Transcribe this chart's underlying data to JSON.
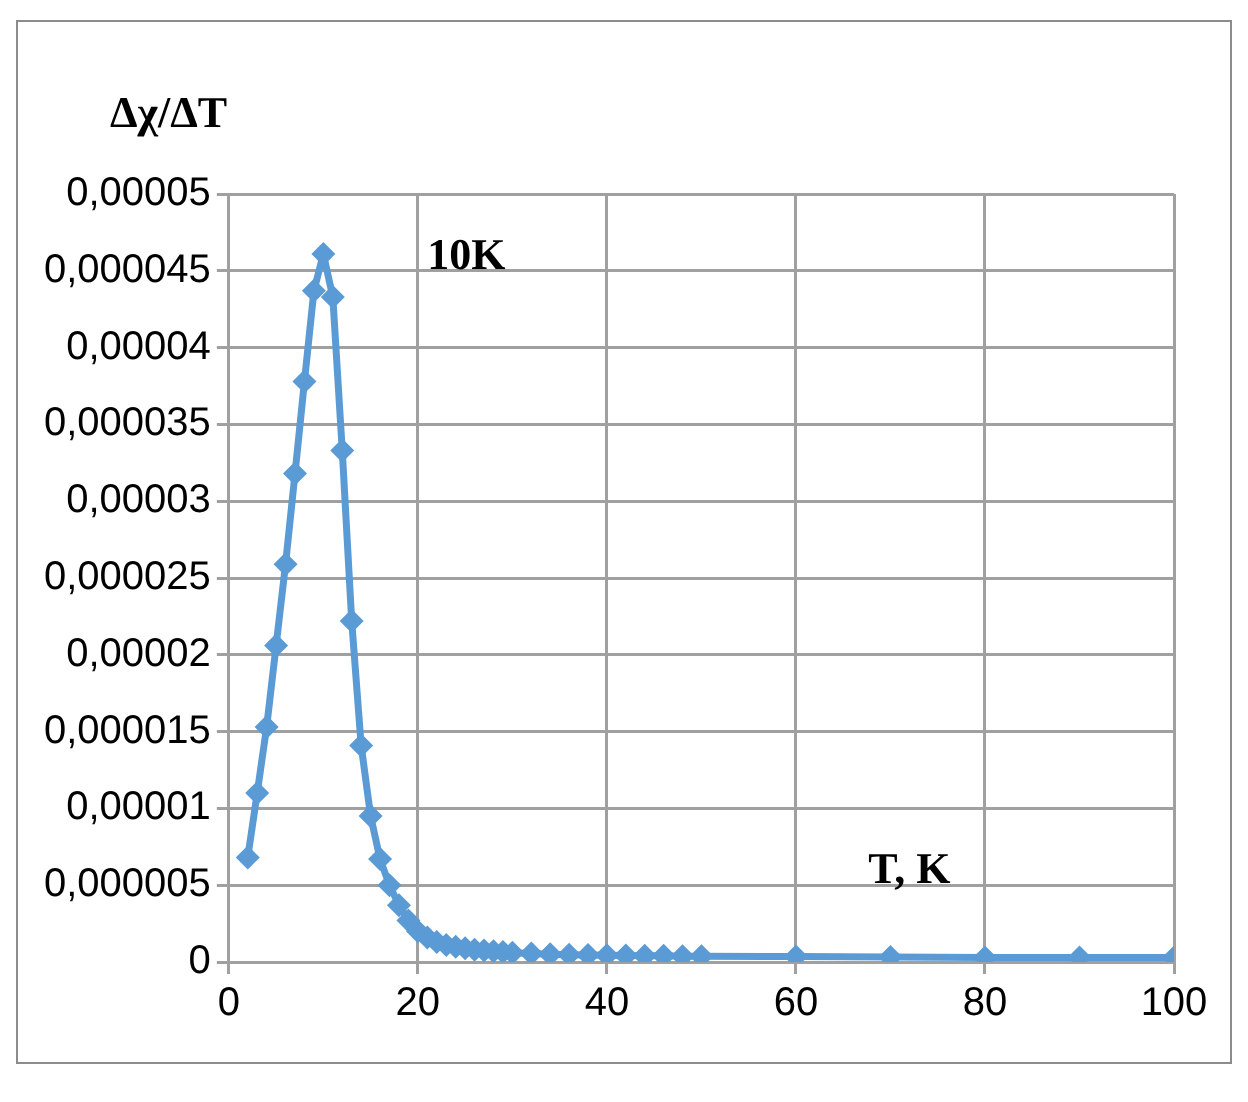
{
  "chart_data": {
    "type": "line",
    "ylabel": "Δχ/ΔT",
    "xlabel": "T, K",
    "annotations": [
      "10K"
    ],
    "x": [
      2,
      3,
      4,
      5,
      6,
      7,
      8,
      9,
      10,
      11,
      12,
      13,
      14,
      15,
      16,
      17,
      18,
      19,
      20,
      21,
      22,
      23,
      24,
      25,
      26,
      27,
      28,
      29,
      30,
      32,
      34,
      36,
      38,
      40,
      42,
      44,
      46,
      48,
      50,
      60,
      70,
      80,
      90,
      100
    ],
    "series": [
      {
        "color": "#5b9bd5",
        "values": [
          6.8e-06,
          1.1e-05,
          1.53e-05,
          2.06e-05,
          2.59e-05,
          3.18e-05,
          3.78e-05,
          4.37e-05,
          4.61e-05,
          4.33e-05,
          3.33e-05,
          2.22e-05,
          1.41e-05,
          9.5e-06,
          6.7e-06,
          5e-06,
          3.7e-06,
          2.7e-06,
          2e-06,
          1.6e-06,
          1.3e-06,
          1.1e-06,
          1e-06,
          9e-07,
          8e-07,
          7.5e-07,
          7e-07,
          6.5e-07,
          6e-07,
          5.5e-07,
          5e-07,
          4.8e-07,
          4.6e-07,
          4.4e-07,
          4.2e-07,
          4e-07,
          4e-07,
          3.8e-07,
          3.7e-07,
          3.5e-07,
          3.2e-07,
          3e-07,
          3e-07,
          3e-07
        ]
      }
    ],
    "xlim": [
      0,
      100
    ],
    "xticks": [
      0,
      20,
      40,
      60,
      80,
      100
    ],
    "ylim": [
      0,
      5e-05
    ],
    "yticks": [
      {
        "value": 0,
        "label": "0"
      },
      {
        "value": 5e-06,
        "label": "0,000005"
      },
      {
        "value": 1e-05,
        "label": "0,00001"
      },
      {
        "value": 1.5e-05,
        "label": "0,000015"
      },
      {
        "value": 2e-05,
        "label": "0,00002"
      },
      {
        "value": 2.5e-05,
        "label": "0,000025"
      },
      {
        "value": 3e-05,
        "label": "0,00003"
      },
      {
        "value": 3.5e-05,
        "label": "0,000035"
      },
      {
        "value": 4e-05,
        "label": "0,00004"
      },
      {
        "value": 4.5e-05,
        "label": "0,000045"
      },
      {
        "value": 5e-05,
        "label": "0,00005"
      }
    ],
    "grid": true,
    "legend": false,
    "marker": "diamond",
    "line_style": "solid"
  }
}
